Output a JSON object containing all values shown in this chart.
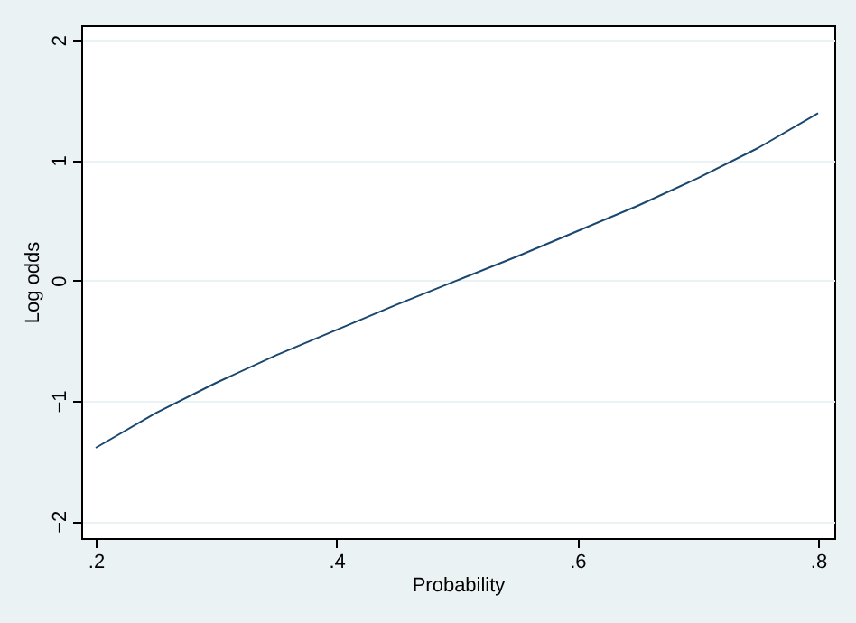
{
  "chart_data": {
    "type": "line",
    "xlabel": "Probability",
    "ylabel": "Log odds",
    "x": [
      0.2,
      0.25,
      0.3,
      0.35,
      0.4,
      0.45,
      0.5,
      0.55,
      0.6,
      0.65,
      0.7,
      0.75,
      0.8
    ],
    "series": [
      {
        "color": "#1a476f",
        "values": [
          -1.39,
          -1.1,
          -0.85,
          -0.62,
          -0.41,
          -0.2,
          0,
          0.2,
          0.41,
          0.62,
          0.85,
          1.1,
          1.39
        ]
      }
    ],
    "xlim": [
      0.188,
      0.8135
    ],
    "xticks": [
      {
        "value": 0.2,
        "label": ".2"
      },
      {
        "value": 0.4,
        "label": ".4"
      },
      {
        "value": 0.6,
        "label": ".6"
      },
      {
        "value": 0.8,
        "label": ".8"
      }
    ],
    "ylim": [
      -2.14,
      2.12
    ],
    "yticks": [
      -2,
      -1,
      0,
      1,
      2
    ],
    "grid": "y",
    "line_style": "solid"
  }
}
